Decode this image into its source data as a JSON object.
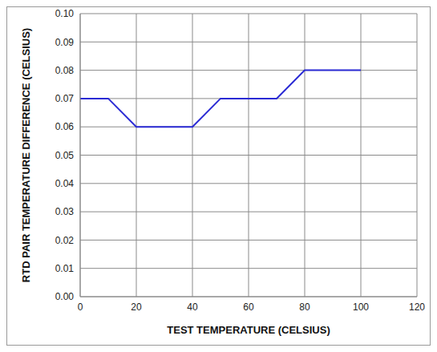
{
  "chart_data": {
    "type": "line",
    "x_label": "TEST TEMPERATURE (CELSIUS)",
    "y_label": "RTD PAIR TEMPERATURE DIFFERENCE (CELSIUS)",
    "x": [
      0,
      10,
      20,
      40,
      50,
      70,
      80,
      100
    ],
    "values": [
      0.07,
      0.07,
      0.06,
      0.06,
      0.07,
      0.07,
      0.08,
      0.08
    ],
    "color": "#2a2ad4",
    "xlim": [
      0,
      120
    ],
    "xticks": [
      0,
      20,
      40,
      60,
      80,
      100,
      120
    ],
    "ylim": [
      0,
      0.1
    ],
    "yticks": [
      {
        "value": 0,
        "label": "0.00"
      },
      0.01,
      0.02,
      0.03,
      0.04,
      0.05,
      0.06,
      0.07,
      0.08,
      0.09,
      {
        "value": 0.1,
        "label": "0.10"
      }
    ],
    "grid": true
  }
}
